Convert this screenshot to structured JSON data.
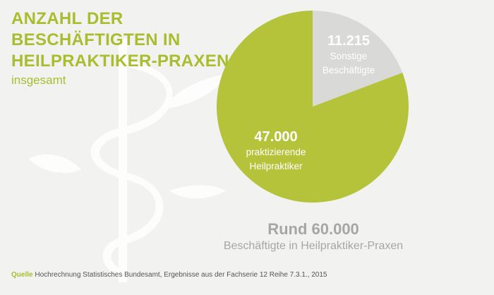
{
  "title_lines": [
    "ANZAHL DER",
    "BESCHÄFTIGTEN IN",
    "HEILPRAKTIKER-PRAXEN"
  ],
  "subtitle": "insgesamt",
  "colors": {
    "accent": "#a9bd2e",
    "pie_green": "#b5c33a",
    "pie_gray": "#d9d9d7",
    "text_gray": "#a7a6a5"
  },
  "chart_data": {
    "type": "pie",
    "slices": [
      {
        "label_value": "11.215",
        "label_lines": [
          "Sonstige",
          "Beschäftigte"
        ],
        "value": 11215,
        "color": "#d9d9d7"
      },
      {
        "label_value": "47.000",
        "label_lines": [
          "praktizierende",
          "Heilpraktiker"
        ],
        "value": 47000,
        "color": "#b5c33a"
      }
    ]
  },
  "total": {
    "value": "Rund 60.000",
    "label": "Beschäftigte in Heilpraktiker-Praxen"
  },
  "source": {
    "label": "Quelle",
    "text": "Hochrechnung Statistisches Bundesamt, Ergebnisse aus der Fachserie 12 Reihe 7.3.1., 2015"
  },
  "watermark_icon": "caduceus-icon"
}
